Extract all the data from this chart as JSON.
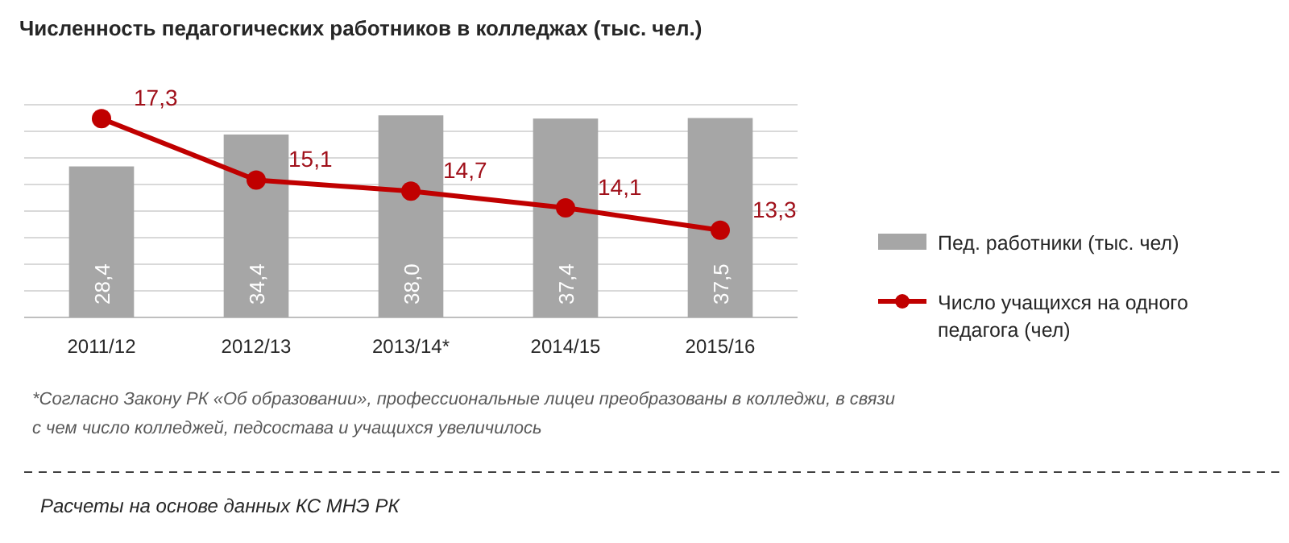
{
  "chart_data": {
    "type": "bar",
    "title": "Численность педагогических работников в колледжах (тыс. чел.)",
    "categories": [
      "2011/12",
      "2012/13",
      "2013/14*",
      "2014/15",
      "2015/16"
    ],
    "series": [
      {
        "name": "Пед. работники (тыс. чел)",
        "color": "#a6a6a6",
        "values": [
          28.4,
          34.4,
          38.0,
          37.4,
          37.5
        ],
        "value_labels": [
          "28,4",
          "34,4",
          "38,0",
          "37,4",
          "37,5"
        ]
      },
      {
        "name": "Число учащихся на одного педагога (чел)",
        "type": "line",
        "axis": "y2",
        "color": "#c00000",
        "values": [
          17.3,
          15.1,
          14.7,
          14.1,
          13.3
        ],
        "value_labels": [
          "17,3",
          "15,1",
          "14,7",
          "14,1",
          "13,3"
        ]
      }
    ],
    "ylim": [
      0,
      40
    ],
    "yticks": [
      {
        "value": 0,
        "label": null
      },
      {
        "value": 5,
        "label": null
      },
      {
        "value": 10,
        "label": null
      },
      {
        "value": 15,
        "label": null
      },
      {
        "value": 20,
        "label": null
      },
      {
        "value": 25,
        "label": null
      },
      {
        "value": 30,
        "label": null
      },
      {
        "value": 35,
        "label": null
      },
      {
        "value": 40,
        "label": null
      }
    ],
    "y2lim": [
      10.17,
      17.8
    ],
    "tick_labels": "x",
    "grid": "y",
    "legend": "right",
    "marker": "circle",
    "line_style": "solid",
    "annotations": [
      "*Согласно Закону РК «Об образовании», профессиональные лицеи преобразованы в колледжи, в связи с чем число колледжей, педсостава и учащихся увеличилось",
      "Расчеты на основе данных КС МНЭ РК"
    ]
  }
}
